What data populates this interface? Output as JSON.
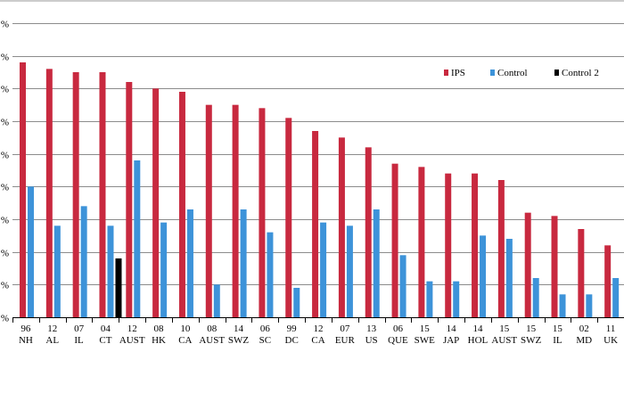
{
  "chart_data": {
    "type": "bar",
    "title": "",
    "xlabel": "",
    "ylabel": "",
    "ylim": [
      0,
      90
    ],
    "y_ticks": [
      0,
      10,
      20,
      30,
      40,
      50,
      60,
      70,
      80,
      90
    ],
    "y_tick_labels": [
      "%",
      "%",
      "%",
      "%",
      "%",
      "%",
      "%",
      "%",
      "%",
      "%"
    ],
    "grid": true,
    "legend_position": "top-right",
    "categories": [
      {
        "year": "96",
        "site": "NH"
      },
      {
        "year": "12",
        "site": "AL"
      },
      {
        "year": "07",
        "site": "IL"
      },
      {
        "year": "04",
        "site": "CT"
      },
      {
        "year": "12",
        "site": "AUST"
      },
      {
        "year": "08",
        "site": "HK"
      },
      {
        "year": "10",
        "site": "CA"
      },
      {
        "year": "08",
        "site": "AUST"
      },
      {
        "year": "14",
        "site": "SWZ"
      },
      {
        "year": "06",
        "site": "SC"
      },
      {
        "year": "99",
        "site": "DC"
      },
      {
        "year": "12",
        "site": "CA"
      },
      {
        "year": "07",
        "site": "EUR"
      },
      {
        "year": "13",
        "site": "US"
      },
      {
        "year": "06",
        "site": "QUE"
      },
      {
        "year": "15",
        "site": "SWE"
      },
      {
        "year": "14",
        "site": "JAP"
      },
      {
        "year": "14",
        "site": "HOL"
      },
      {
        "year": "15",
        "site": "AUST"
      },
      {
        "year": "15",
        "site": "SWZ"
      },
      {
        "year": "15",
        "site": "IL"
      },
      {
        "year": "02",
        "site": "MD"
      },
      {
        "year": "11",
        "site": "UK"
      }
    ],
    "series": [
      {
        "name": "IPS",
        "color": "#c8293f",
        "values": [
          78,
          76,
          75,
          75,
          72,
          70,
          69,
          65,
          65,
          64,
          61,
          57,
          55,
          52,
          47,
          46,
          44,
          44,
          42,
          32,
          31,
          27,
          22
        ]
      },
      {
        "name": "Control",
        "color": "#3d93d9",
        "values": [
          40,
          28,
          34,
          28,
          48,
          29,
          33,
          10,
          33,
          26,
          9,
          29,
          28,
          33,
          19,
          11,
          11,
          25,
          24,
          12,
          7,
          7,
          12
        ]
      },
      {
        "name": "Control 2",
        "color": "#000000",
        "values": [
          null,
          null,
          null,
          18,
          null,
          null,
          null,
          null,
          null,
          null,
          null,
          null,
          null,
          null,
          null,
          null,
          null,
          null,
          null,
          null,
          null,
          null,
          null
        ]
      }
    ]
  }
}
